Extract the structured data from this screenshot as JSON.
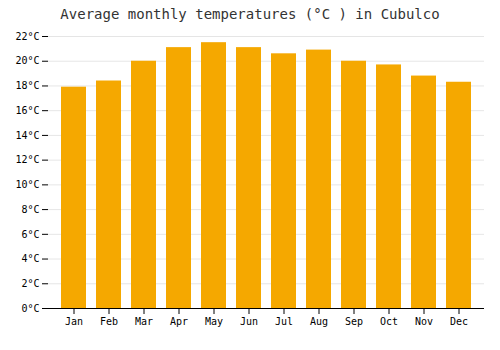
{
  "chart_data": {
    "type": "bar",
    "title": "Average monthly temperatures (°C ) in Cubulco",
    "categories": [
      "Jan",
      "Feb",
      "Mar",
      "Apr",
      "May",
      "Jun",
      "Jul",
      "Aug",
      "Sep",
      "Oct",
      "Nov",
      "Dec"
    ],
    "values": [
      17.9,
      18.4,
      20.0,
      21.1,
      21.5,
      21.1,
      20.6,
      20.9,
      20.0,
      19.7,
      18.8,
      18.3
    ],
    "color": "#F5A800",
    "ylim": [
      0,
      22
    ],
    "yticks": [
      {
        "value": 0,
        "label": "0°C"
      },
      {
        "value": 2,
        "label": "2°C"
      },
      {
        "value": 4,
        "label": "4°C"
      },
      {
        "value": 6,
        "label": "6°C"
      },
      {
        "value": 8,
        "label": "8°C"
      },
      {
        "value": 10,
        "label": "10°C"
      },
      {
        "value": 12,
        "label": "12°C"
      },
      {
        "value": 14,
        "label": "14°C"
      },
      {
        "value": 16,
        "label": "16°C"
      },
      {
        "value": 18,
        "label": "18°C"
      },
      {
        "value": 20,
        "label": "20°C"
      },
      {
        "value": 22,
        "label": "22°C"
      }
    ],
    "grid": true
  }
}
